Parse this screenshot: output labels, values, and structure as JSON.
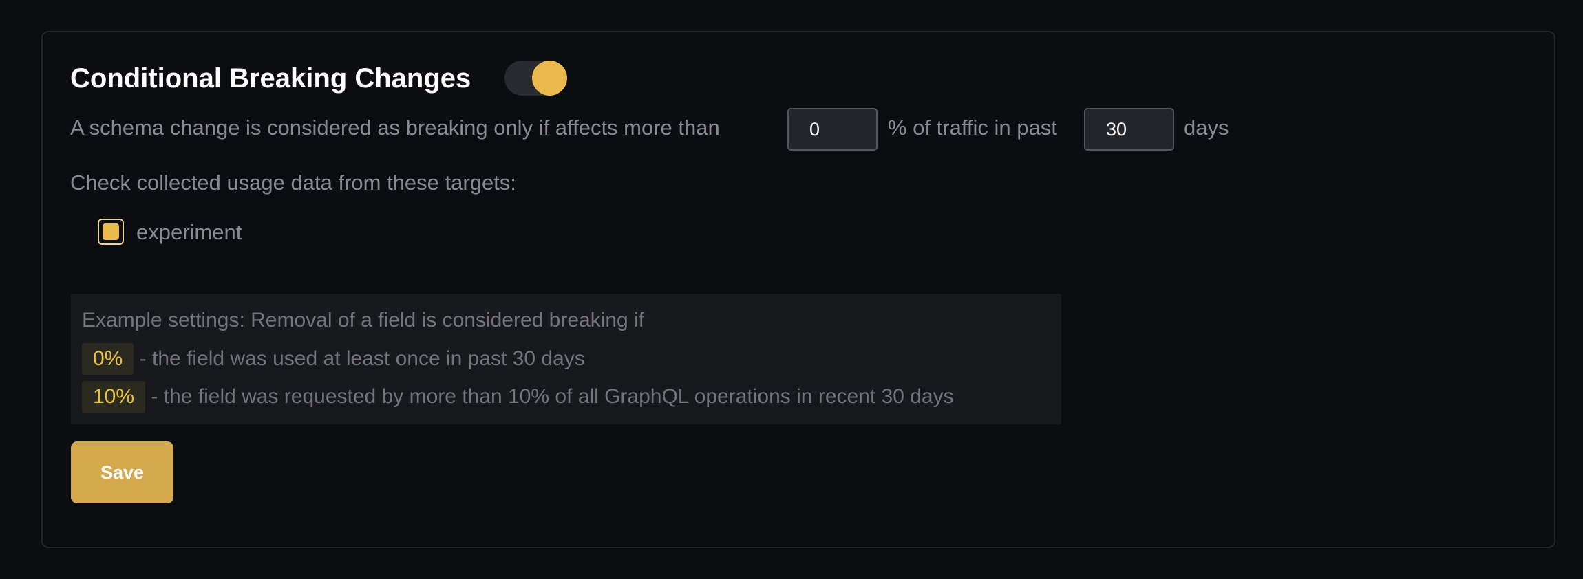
{
  "section": {
    "title": "Conditional Breaking Changes",
    "toggle_on": true,
    "description_prefix": "A schema change is considered as breaking only if affects more than",
    "percentage_value": "0",
    "description_middle": "% of traffic in past",
    "days_value": "30",
    "description_suffix": "days",
    "targets_label": "Check collected usage data from these targets:",
    "targets": [
      {
        "label": "experiment",
        "checked": true
      }
    ]
  },
  "example": {
    "heading": "Example settings: Removal of a field is considered breaking if",
    "rows": [
      {
        "badge": "0%",
        "text": "- the field was used at least once in past 30 days"
      },
      {
        "badge": "10%",
        "text": "- the field was requested by more than 10% of all GraphQL operations in recent 30 days"
      }
    ]
  },
  "save_label": "Save",
  "colors": {
    "accent": "#eab94e",
    "button": "#d4a94d",
    "background": "#0b0c10"
  }
}
